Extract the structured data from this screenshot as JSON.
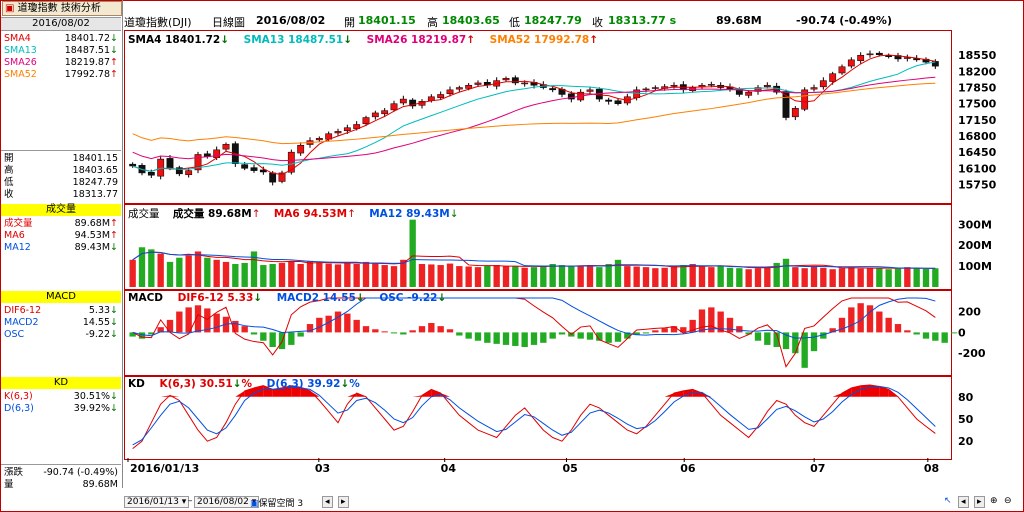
{
  "app": {
    "tab_label": "道瓊指數 技術分析",
    "date": "2016/08/02"
  },
  "header": {
    "name": "道瓊指數(DJI)",
    "period": "日線圖",
    "date": "2016/08/02",
    "open_label": "開",
    "open": "18401.15",
    "high_label": "高",
    "high": "18403.65",
    "low_label": "低",
    "low": "18247.79",
    "close_label": "收",
    "close": "18313.77 s",
    "volume": "89.68M",
    "change": "-90.74 (-0.49%)"
  },
  "left_panel": {
    "sma": [
      {
        "label": "SMA4",
        "value": "18401.72",
        "arrow": "↓",
        "color": "#e00000"
      },
      {
        "label": "SMA13",
        "value": "18487.51",
        "arrow": "↓",
        "color": "#00bcbc"
      },
      {
        "label": "SMA26",
        "value": "18219.87",
        "arrow": "↑",
        "color": "#e0007a"
      },
      {
        "label": "SMA52",
        "value": "17992.78",
        "arrow": "↑",
        "color": "#ff8000"
      }
    ],
    "ohlc": [
      {
        "label": "開",
        "value": "18401.15"
      },
      {
        "label": "高",
        "value": "18403.65"
      },
      {
        "label": "低",
        "value": "18247.79"
      },
      {
        "label": "收",
        "value": "18313.77"
      }
    ],
    "volume_title": "成交量",
    "volume": [
      {
        "label": "成交量",
        "value": "89.68M",
        "arrow": "↑",
        "color": "#e00000"
      },
      {
        "label": "MA6",
        "value": "94.53M",
        "arrow": "↑",
        "color": "#e00000"
      },
      {
        "label": "MA12",
        "value": "89.43M",
        "arrow": "↓",
        "color": "#0050e0"
      }
    ],
    "macd_title": "MACD",
    "macd": [
      {
        "label": "DIF6-12",
        "value": "5.33",
        "arrow": "↓",
        "color": "#e00000"
      },
      {
        "label": "MACD2",
        "value": "14.55",
        "arrow": "↓",
        "color": "#0050e0"
      },
      {
        "label": "OSC",
        "value": "-9.22",
        "arrow": "↓",
        "color": "#0050e0"
      }
    ],
    "kd_title": "KD",
    "kd": [
      {
        "label": "K(6,3)",
        "value": "30.51%",
        "arrow": "↓",
        "color": "#e00000"
      },
      {
        "label": "D(6,3)",
        "value": "39.92%",
        "arrow": "↓",
        "color": "#0050e0"
      }
    ],
    "change_label": "漲跌",
    "change_value": "-90.74 (-0.49%)",
    "vol_label": "量",
    "vol_value": "89.68M"
  },
  "panels": {
    "price_title": {
      "sma4": "SMA4 18401.72",
      "sma4_arrow": "↓",
      "sma13": "SMA13 18487.51",
      "sma13_arrow": "↓",
      "sma26": "SMA26 18219.87",
      "sma26_arrow": "↑",
      "sma52": "SMA52 17992.78",
      "sma52_arrow": "↑"
    },
    "volume_title": {
      "label": "成交量",
      "vol": "成交量 89.68M",
      "vol_arrow": "↑",
      "ma6": "MA6 94.53M",
      "ma6_arrow": "↑",
      "ma12": "MA12 89.43M",
      "ma12_arrow": "↓"
    },
    "macd_title": {
      "label": "MACD",
      "dif": "DIF6-12 5.33",
      "dif_arrow": "↓",
      "macd2": "MACD2 14.55",
      "macd2_arrow": "↓",
      "osc": "OSC -9.22",
      "osc_arrow": "↓"
    },
    "kd_title": {
      "label": "KD",
      "k": "K(6,3) 30.51",
      "k_arrow": "↓",
      "k_pct": "%",
      "d": "D(6,3) 39.92",
      "d_arrow": "↓",
      "d_pct": "%"
    }
  },
  "x_axis": {
    "labels": [
      "2016/01/13",
      "03",
      "04",
      "05",
      "06",
      "07",
      "08"
    ]
  },
  "bottom_bar": {
    "start_date": "2016/01/13",
    "end_date": "2016/08/02",
    "keep_space_label": "保留空間",
    "keep_space_value": "3"
  },
  "chart_data": [
    {
      "type": "candlestick",
      "title": "道瓊指數(DJI) 日線圖",
      "y_ticks": [
        "18550",
        "18200",
        "17850",
        "17500",
        "17150",
        "16800",
        "16450",
        "16100",
        "15750"
      ],
      "ylim": [
        15500,
        18750
      ],
      "x_labels": [
        "2016/01/13",
        "03",
        "04",
        "05",
        "06",
        "07",
        "08"
      ],
      "close_path": [
        16150,
        16000,
        15950,
        16300,
        16100,
        15980,
        16050,
        16400,
        16350,
        16500,
        16620,
        16200,
        16100,
        16050,
        16020,
        15800,
        16000,
        16450,
        16600,
        16700,
        16750,
        16850,
        16900,
        16980,
        17050,
        17200,
        17300,
        17350,
        17500,
        17600,
        17450,
        17550,
        17650,
        17700,
        17800,
        17850,
        17900,
        17950,
        17900,
        18000,
        18050,
        17950,
        17950,
        17900,
        17850,
        17800,
        17700,
        17600,
        17750,
        17800,
        17600,
        17550,
        17500,
        17650,
        17800,
        17820,
        17850,
        17870,
        17900,
        17800,
        17850,
        17900,
        17920,
        17850,
        17800,
        17700,
        17750,
        17850,
        17900,
        17750,
        17200,
        17400,
        17800,
        17850,
        18000,
        18150,
        18300,
        18450,
        18550,
        18580,
        18560,
        18530,
        18470,
        18500,
        18450,
        18401,
        18313
      ],
      "series": [
        {
          "name": "SMA4",
          "color": "#e00000",
          "last": 18401.72
        },
        {
          "name": "SMA13",
          "color": "#00bcbc",
          "last": 18487.51
        },
        {
          "name": "SMA26",
          "color": "#e0007a",
          "last": 18219.87
        },
        {
          "name": "SMA52",
          "color": "#ff8000",
          "last": 17992.78
        }
      ]
    },
    {
      "type": "bar",
      "title": "成交量",
      "y_ticks": [
        "300M",
        "200M",
        "100M"
      ],
      "ylim": [
        0,
        330
      ],
      "values": [
        130,
        190,
        180,
        160,
        120,
        140,
        150,
        170,
        140,
        130,
        120,
        110,
        115,
        170,
        105,
        110,
        115,
        120,
        110,
        125,
        118,
        112,
        108,
        115,
        110,
        120,
        115,
        105,
        100,
        130,
        322,
        110,
        108,
        105,
        112,
        100,
        98,
        95,
        102,
        105,
        100,
        98,
        92,
        95,
        100,
        110,
        105,
        98,
        100,
        105,
        95,
        110,
        130,
        100,
        98,
        95,
        90,
        92,
        100,
        105,
        110,
        98,
        95,
        100,
        92,
        90,
        85,
        90,
        95,
        115,
        135,
        95,
        90,
        98,
        92,
        85,
        90,
        95,
        88,
        92,
        90,
        85,
        88,
        95,
        90,
        86,
        89.68
      ],
      "series": [
        {
          "name": "MA6",
          "color": "#e00000",
          "last": 94.53
        },
        {
          "name": "MA12",
          "color": "#0050e0",
          "last": 89.43
        }
      ]
    },
    {
      "type": "bar",
      "title": "MACD",
      "y_ticks": [
        "200",
        "0",
        "-200"
      ],
      "ylim": [
        -380,
        330
      ],
      "osc": [
        -40,
        -60,
        -20,
        50,
        120,
        200,
        240,
        260,
        230,
        180,
        150,
        110,
        60,
        -20,
        -80,
        -140,
        -160,
        -120,
        -40,
        80,
        140,
        160,
        200,
        180,
        120,
        60,
        30,
        10,
        -10,
        -20,
        20,
        60,
        90,
        60,
        30,
        -30,
        -60,
        -80,
        -100,
        -110,
        -120,
        -130,
        -140,
        -120,
        -100,
        -60,
        -20,
        -40,
        -60,
        -70,
        -80,
        -100,
        -90,
        -60,
        -20,
        -10,
        20,
        40,
        60,
        50,
        120,
        220,
        240,
        200,
        140,
        60,
        -20,
        -80,
        -120,
        -140,
        -160,
        -200,
        -340,
        -180,
        -60,
        40,
        140,
        240,
        280,
        260,
        200,
        140,
        80,
        20,
        -20,
        -60,
        -80,
        -100,
        -9.22
      ],
      "series": [
        {
          "name": "DIF6-12",
          "color": "#e00000",
          "last": 5.33
        },
        {
          "name": "MACD2",
          "color": "#0050e0",
          "last": 14.55
        }
      ]
    },
    {
      "type": "line",
      "title": "KD",
      "y_ticks": [
        "80",
        "50",
        "20"
      ],
      "ylim": [
        0,
        100
      ],
      "series": [
        {
          "name": "K(6,3)",
          "color": "#e00000",
          "values": [
            10,
            20,
            45,
            70,
            82,
            75,
            55,
            35,
            20,
            25,
            45,
            70,
            88,
            92,
            95,
            90,
            92,
            95,
            93,
            88,
            75,
            60,
            45,
            70,
            85,
            80,
            65,
            50,
            35,
            40,
            60,
            82,
            90,
            85,
            70,
            55,
            45,
            35,
            30,
            25,
            40,
            55,
            65,
            50,
            35,
            25,
            20,
            35,
            55,
            70,
            65,
            55,
            45,
            35,
            30,
            40,
            55,
            70,
            85,
            88,
            90,
            85,
            70,
            55,
            45,
            35,
            25,
            40,
            60,
            75,
            70,
            55,
            45,
            40,
            55,
            70,
            85,
            92,
            95,
            96,
            94,
            90,
            80,
            65,
            50,
            40,
            30.51
          ]
        },
        {
          "name": "D(6,3)",
          "color": "#0050e0",
          "values": [
            15,
            22,
            38,
            55,
            70,
            74,
            65,
            50,
            35,
            30,
            38,
            55,
            75,
            85,
            90,
            90,
            91,
            93,
            92,
            90,
            82,
            70,
            58,
            62,
            75,
            78,
            72,
            62,
            50,
            45,
            52,
            68,
            80,
            83,
            76,
            65,
            56,
            47,
            40,
            33,
            36,
            46,
            56,
            53,
            44,
            35,
            28,
            32,
            45,
            58,
            62,
            58,
            51,
            43,
            37,
            39,
            48,
            60,
            73,
            81,
            86,
            86,
            78,
            67,
            56,
            46,
            36,
            38,
            50,
            63,
            67,
            61,
            53,
            46,
            50,
            60,
            73,
            83,
            90,
            93,
            94,
            92,
            86,
            76,
            64,
            52,
            39.92
          ]
        }
      ]
    }
  ]
}
